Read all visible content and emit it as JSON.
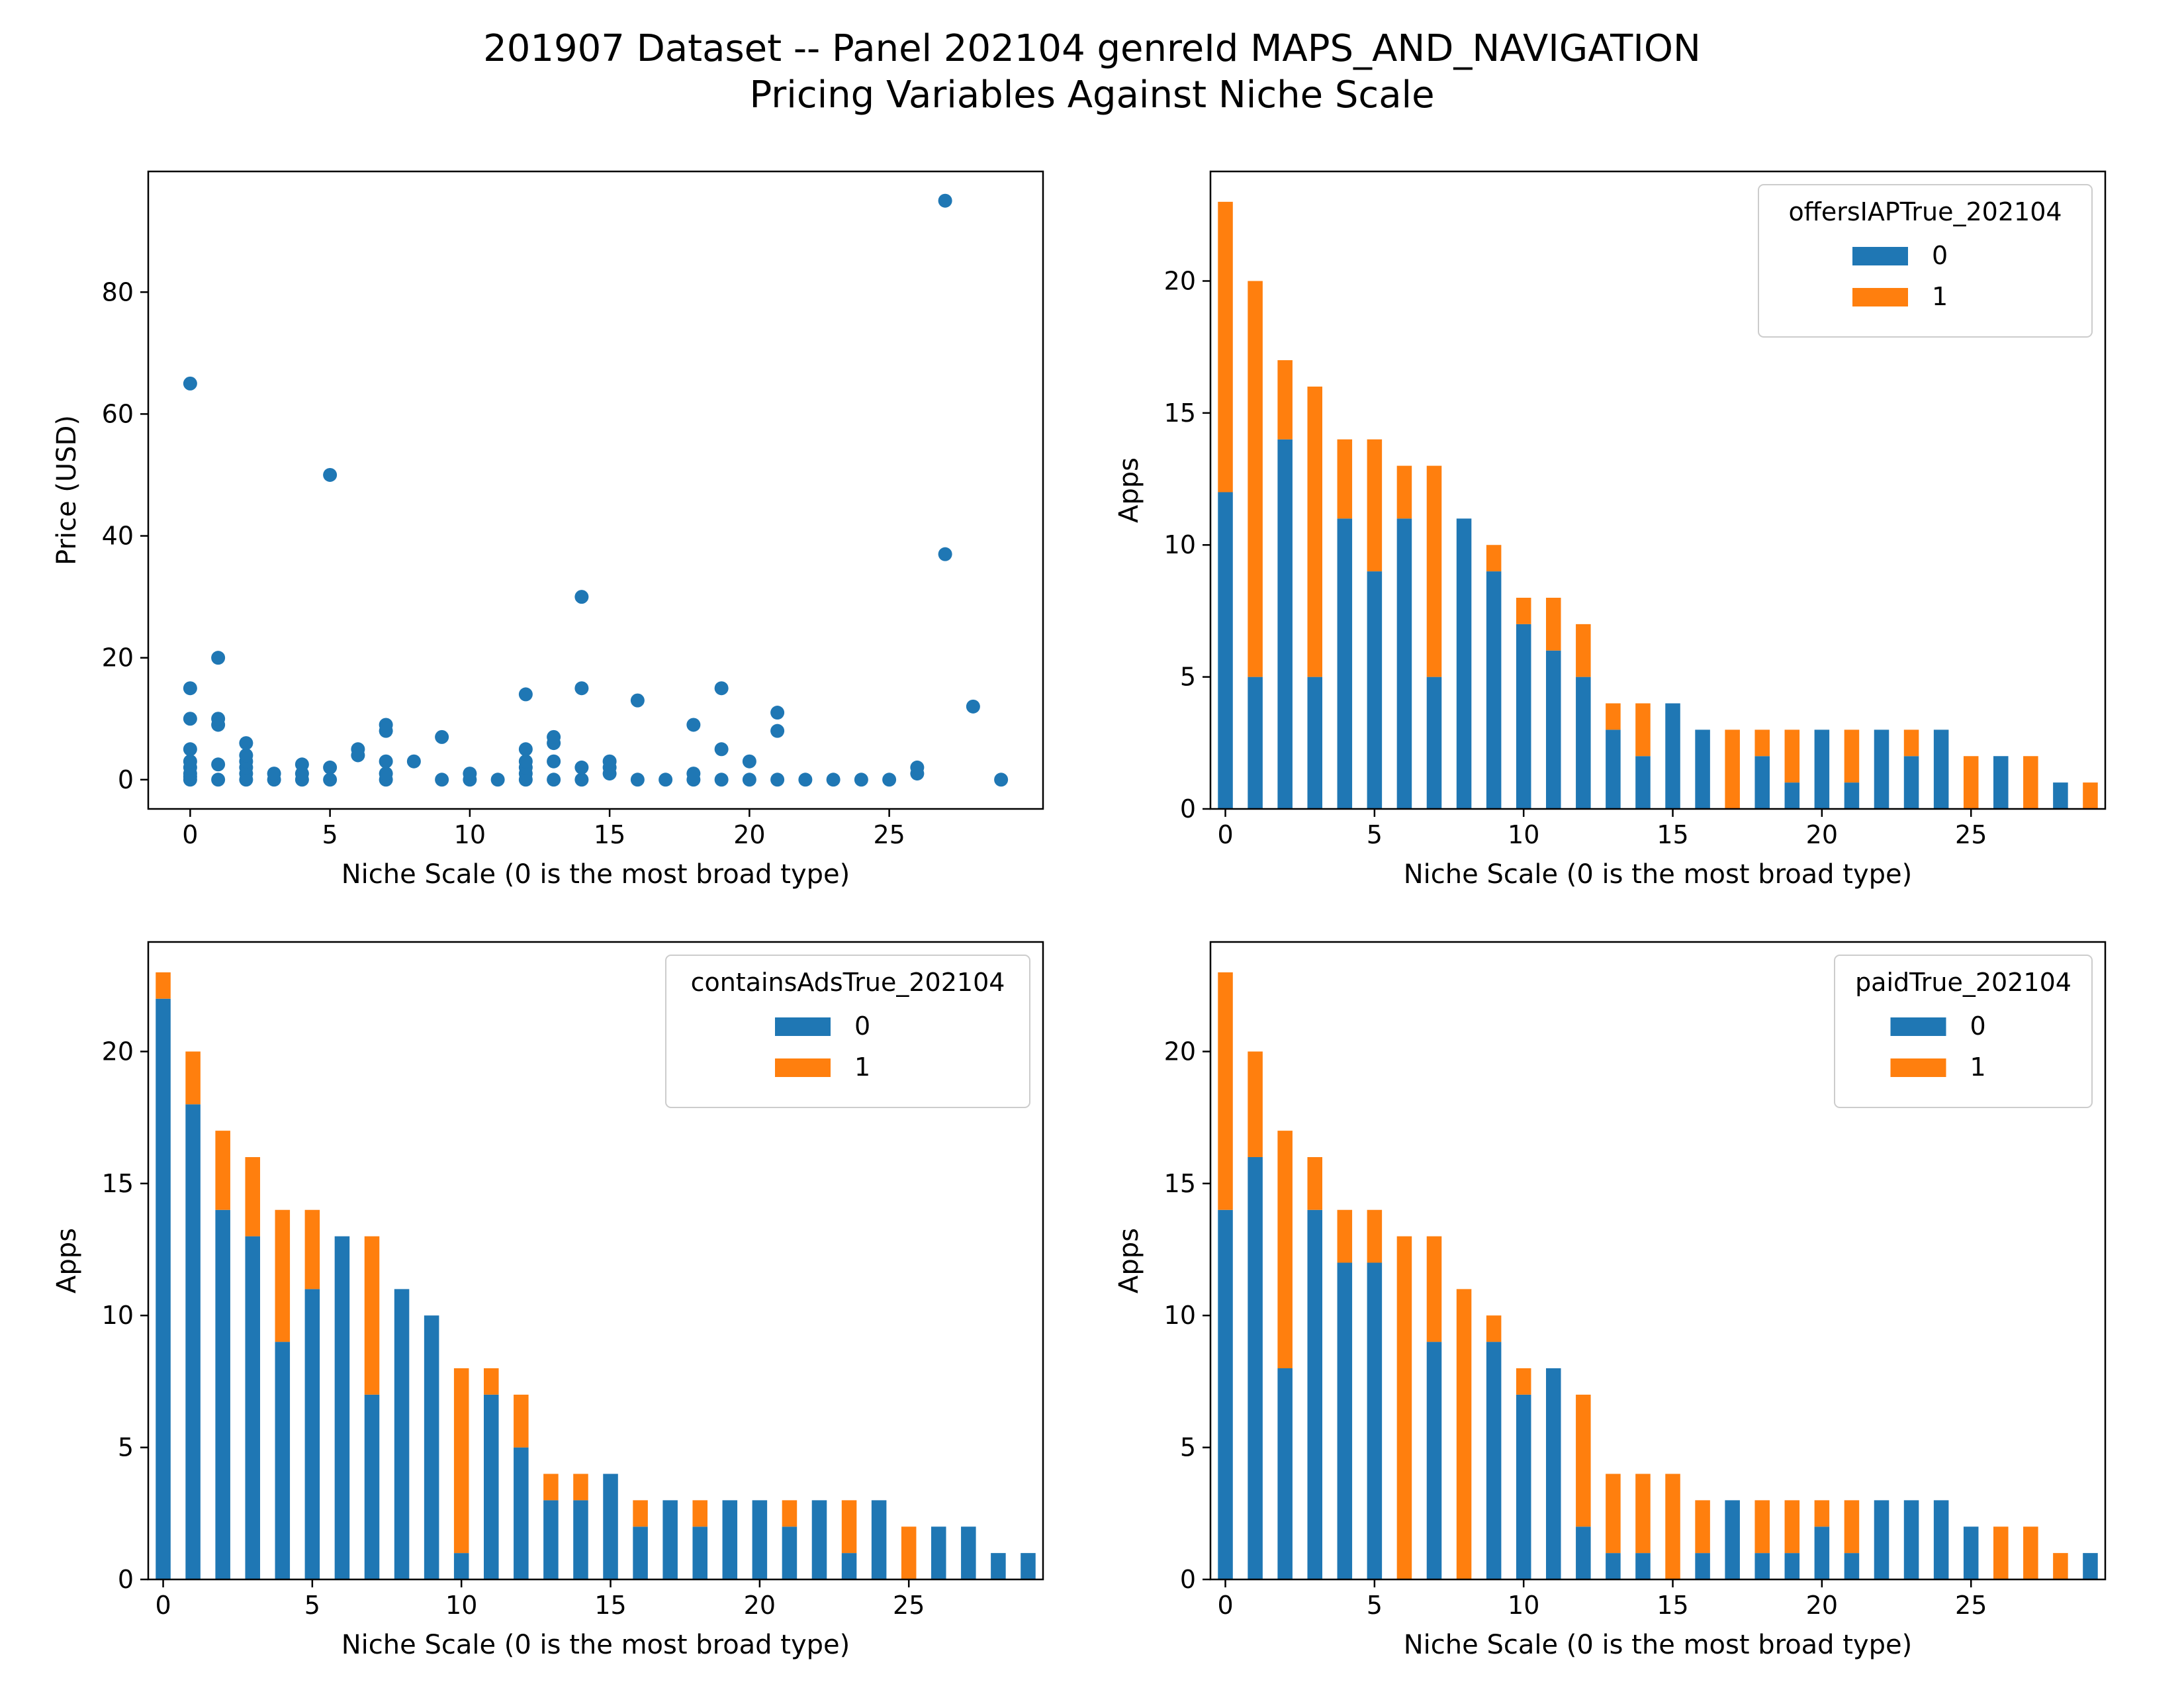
{
  "figure": {
    "title_line1": "201907 Dataset -- Panel 202104 genreId MAPS_AND_NAVIGATION",
    "title_line2": "Pricing Variables Against Niche Scale"
  },
  "colors": {
    "series0": "#1f77b4",
    "series1": "#ff7f0e"
  },
  "chart_data": [
    {
      "type": "scatter",
      "xlabel": "Niche Scale (0 is the most broad type)",
      "ylabel": "Price (USD)",
      "xlim": [
        -1.5,
        30.5
      ],
      "ylim": [
        -4.8,
        99.8
      ],
      "xticks": [
        0,
        5,
        10,
        15,
        20,
        25
      ],
      "yticks": [
        0,
        20,
        40,
        60,
        80
      ],
      "points": [
        [
          0,
          0
        ],
        [
          0,
          0.5
        ],
        [
          0,
          1
        ],
        [
          0,
          2
        ],
        [
          0,
          3
        ],
        [
          0,
          5
        ],
        [
          0,
          10
        ],
        [
          0,
          15
        ],
        [
          0,
          65
        ],
        [
          1,
          0
        ],
        [
          1,
          2.5
        ],
        [
          1,
          9
        ],
        [
          1,
          10
        ],
        [
          1,
          20
        ],
        [
          2,
          0
        ],
        [
          2,
          1
        ],
        [
          2,
          2
        ],
        [
          2,
          3
        ],
        [
          2,
          4
        ],
        [
          2,
          6
        ],
        [
          3,
          0
        ],
        [
          3,
          1
        ],
        [
          4,
          0
        ],
        [
          4,
          1
        ],
        [
          4,
          2.5
        ],
        [
          5,
          0
        ],
        [
          5,
          2
        ],
        [
          5,
          50
        ],
        [
          6,
          4
        ],
        [
          6,
          5
        ],
        [
          7,
          0
        ],
        [
          7,
          1
        ],
        [
          7,
          3
        ],
        [
          7,
          8
        ],
        [
          7,
          9
        ],
        [
          8,
          3
        ],
        [
          9,
          0
        ],
        [
          9,
          7
        ],
        [
          10,
          0
        ],
        [
          10,
          1
        ],
        [
          11,
          0
        ],
        [
          12,
          0
        ],
        [
          12,
          1
        ],
        [
          12,
          2
        ],
        [
          12,
          3
        ],
        [
          12,
          5
        ],
        [
          12,
          14
        ],
        [
          13,
          0
        ],
        [
          13,
          3
        ],
        [
          13,
          6
        ],
        [
          13,
          7
        ],
        [
          14,
          0
        ],
        [
          14,
          2
        ],
        [
          14,
          15
        ],
        [
          14,
          30
        ],
        [
          15,
          1
        ],
        [
          15,
          2
        ],
        [
          15,
          3
        ],
        [
          16,
          0
        ],
        [
          16,
          13
        ],
        [
          17,
          0
        ],
        [
          18,
          0
        ],
        [
          18,
          1
        ],
        [
          18,
          9
        ],
        [
          19,
          0
        ],
        [
          19,
          5
        ],
        [
          19,
          15
        ],
        [
          20,
          0
        ],
        [
          20,
          3
        ],
        [
          21,
          0
        ],
        [
          21,
          8
        ],
        [
          21,
          11
        ],
        [
          22,
          0
        ],
        [
          23,
          0
        ],
        [
          24,
          0
        ],
        [
          25,
          0
        ],
        [
          26,
          1
        ],
        [
          26,
          2
        ],
        [
          27,
          37
        ],
        [
          27,
          95
        ],
        [
          28,
          12
        ],
        [
          29,
          0
        ]
      ]
    },
    {
      "type": "bar",
      "stacked": true,
      "xlabel": "Niche Scale (0 is the most broad type)",
      "ylabel": "Apps",
      "ylim": [
        0,
        24.15
      ],
      "xticks": [
        0,
        5,
        10,
        15,
        20,
        25
      ],
      "yticks": [
        0,
        5,
        10,
        15,
        20
      ],
      "categories": [
        0,
        1,
        2,
        3,
        4,
        5,
        6,
        7,
        8,
        9,
        10,
        11,
        12,
        13,
        14,
        15,
        16,
        17,
        18,
        19,
        20,
        21,
        22,
        23,
        24,
        25,
        26,
        27,
        28,
        29
      ],
      "legend_title": "offersIAPTrue_202104",
      "legend_position": "upper right",
      "series": [
        {
          "name": "0",
          "values": [
            12,
            5,
            14,
            5,
            11,
            9,
            11,
            5,
            11,
            9,
            7,
            6,
            5,
            3,
            2,
            4,
            3,
            0,
            2,
            1,
            3,
            1,
            3,
            2,
            3,
            0,
            2,
            0,
            1,
            0
          ]
        },
        {
          "name": "1",
          "values": [
            11,
            15,
            3,
            11,
            3,
            5,
            2,
            8,
            0,
            1,
            1,
            2,
            2,
            1,
            2,
            0,
            0,
            3,
            1,
            2,
            0,
            2,
            0,
            1,
            0,
            2,
            0,
            2,
            0,
            1
          ]
        }
      ]
    },
    {
      "type": "bar",
      "stacked": true,
      "xlabel": "Niche Scale (0 is the most broad type)",
      "ylabel": "Apps",
      "ylim": [
        0,
        24.15
      ],
      "xticks": [
        0,
        5,
        10,
        15,
        20,
        25
      ],
      "yticks": [
        0,
        5,
        10,
        15,
        20
      ],
      "categories": [
        0,
        1,
        2,
        3,
        4,
        5,
        6,
        7,
        8,
        9,
        10,
        11,
        12,
        13,
        14,
        15,
        16,
        17,
        18,
        19,
        20,
        21,
        22,
        23,
        24,
        25,
        26,
        27,
        28,
        29
      ],
      "legend_title": "containsAdsTrue_202104",
      "legend_position": "upper right",
      "series": [
        {
          "name": "0",
          "values": [
            22,
            18,
            14,
            13,
            9,
            11,
            13,
            7,
            11,
            10,
            1,
            7,
            5,
            3,
            3,
            4,
            2,
            3,
            2,
            3,
            3,
            2,
            3,
            1,
            3,
            0,
            2,
            2,
            1,
            1
          ]
        },
        {
          "name": "1",
          "values": [
            1,
            2,
            3,
            3,
            5,
            3,
            0,
            6,
            0,
            0,
            7,
            1,
            2,
            1,
            1,
            0,
            1,
            0,
            1,
            0,
            0,
            1,
            0,
            2,
            0,
            2,
            0,
            0,
            0,
            0
          ]
        }
      ]
    },
    {
      "type": "bar",
      "stacked": true,
      "xlabel": "Niche Scale (0 is the most broad type)",
      "ylabel": "Apps",
      "ylim": [
        0,
        24.15
      ],
      "xticks": [
        0,
        5,
        10,
        15,
        20,
        25
      ],
      "yticks": [
        0,
        5,
        10,
        15,
        20
      ],
      "categories": [
        0,
        1,
        2,
        3,
        4,
        5,
        6,
        7,
        8,
        9,
        10,
        11,
        12,
        13,
        14,
        15,
        16,
        17,
        18,
        19,
        20,
        21,
        22,
        23,
        24,
        25,
        26,
        27,
        28,
        29
      ],
      "legend_title": "paidTrue_202104",
      "legend_position": "upper right",
      "series": [
        {
          "name": "0",
          "values": [
            14,
            16,
            8,
            14,
            12,
            12,
            0,
            9,
            0,
            9,
            7,
            8,
            2,
            1,
            1,
            0,
            1,
            3,
            1,
            1,
            2,
            1,
            3,
            3,
            3,
            2,
            0,
            0,
            0,
            1
          ]
        },
        {
          "name": "1",
          "values": [
            9,
            4,
            9,
            2,
            2,
            2,
            13,
            4,
            11,
            1,
            1,
            0,
            5,
            3,
            3,
            4,
            2,
            0,
            2,
            2,
            1,
            2,
            0,
            0,
            0,
            0,
            2,
            2,
            1,
            0
          ]
        }
      ]
    }
  ]
}
